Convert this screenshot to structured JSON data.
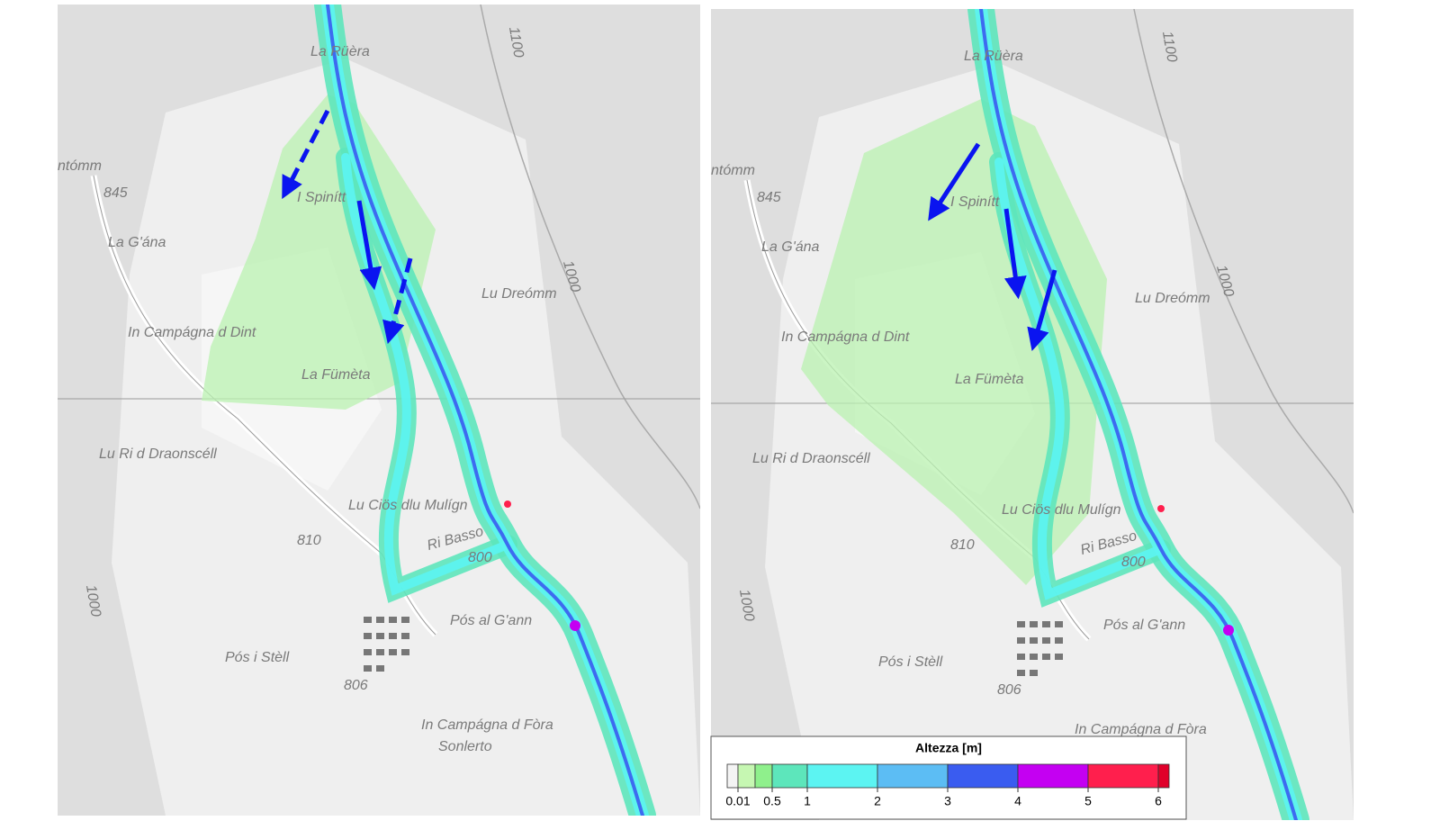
{
  "maps": [
    {
      "labels": [
        "La Rüèra",
        "ntómm",
        "845",
        "I Spinítt",
        "La G'ána",
        "Lu Dreómm",
        "In Campágna d Dint",
        "La Fümèta",
        "Lu Ri d Draonscéll",
        "Lu Ciös dlu Mulígn",
        "810",
        "Ri Basso",
        "800",
        "Pós al G'ann",
        "Pós i Stèll",
        "806",
        "In Campágna d Fòra",
        "1000",
        "1100",
        "1000",
        "Sonlerto"
      ]
    },
    {
      "labels": [
        "La Rüèra",
        "ntómm",
        "845",
        "I Spinítt",
        "La G'ána",
        "Lu Dreómm",
        "In Campágna d Dint",
        "La Fümèta",
        "Lu Ri d Draonscéll",
        "Lu Ciös dlu Mulígn",
        "810",
        "Ri Basso",
        "800",
        "Pós al G'ann",
        "Pós i Stèll",
        "806",
        "In Campágna d Fòra",
        "1000",
        "1100",
        "1000"
      ]
    }
  ],
  "legend": {
    "title": "Altezza [m]",
    "colors": [
      "#f4f4f4",
      "#c6f7b2",
      "#8ff08c",
      "#5de6bb",
      "#5cf4f2",
      "#5cbdf4",
      "#3a5cf0",
      "#c400f2",
      "#ff1f4d",
      "#e0002a"
    ],
    "ticks": [
      0.01,
      0.5,
      1,
      2,
      3,
      4,
      5,
      6
    ]
  }
}
